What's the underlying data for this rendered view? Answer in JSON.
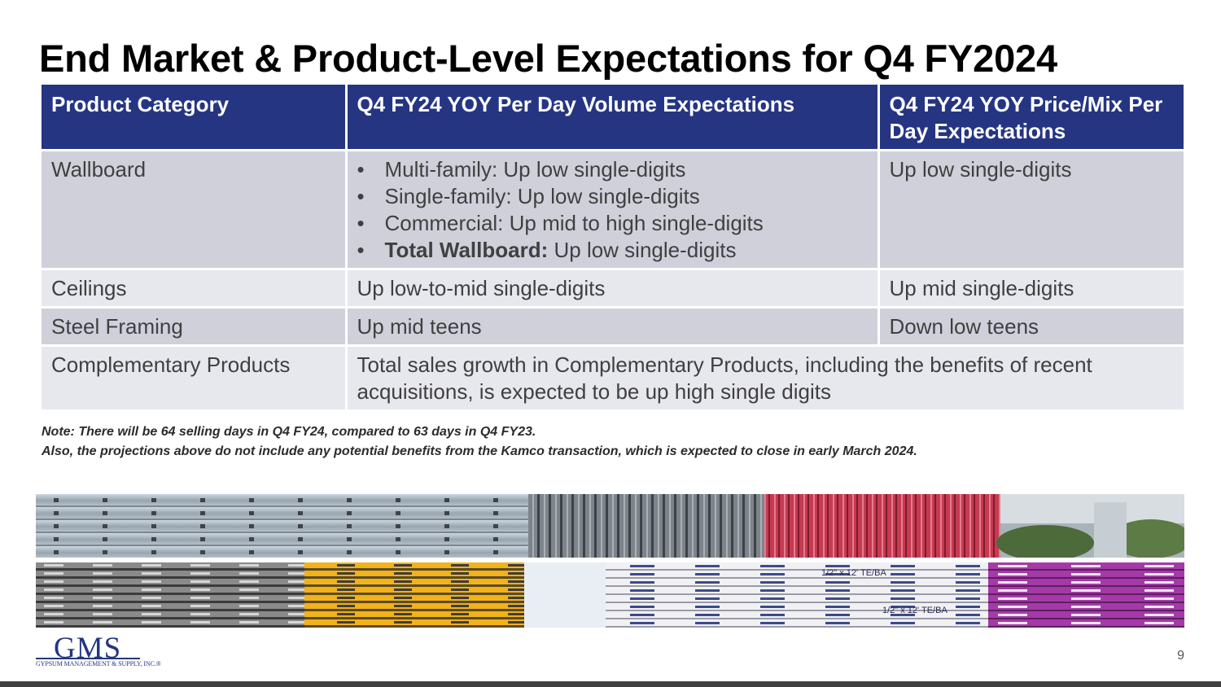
{
  "title": "End Market & Product-Level Expectations for Q4 FY2024",
  "table": {
    "headers": [
      "Product Category",
      "Q4 FY24 YOY Per Day Volume Expectations",
      "Q4 FY24 YOY Price/Mix Per Day Expectations"
    ],
    "wallboard": {
      "category": "Wallboard",
      "volume_bullets": [
        {
          "bold": "",
          "text": "Multi-family: Up low single-digits"
        },
        {
          "bold": "",
          "text": "Single-family: Up low single-digits"
        },
        {
          "bold": "",
          "text": "Commercial: Up mid to high single-digits"
        },
        {
          "bold": "Total Wallboard:",
          "text": " Up low single-digits"
        }
      ],
      "price": "Up low single-digits"
    },
    "ceilings": {
      "category": "Ceilings",
      "volume": "Up low-to-mid single-digits",
      "price": "Up mid single-digits"
    },
    "steel_framing": {
      "category": "Steel Framing",
      "volume": "Up mid teens",
      "price": "Down low teens"
    },
    "complementary": {
      "category": "Complementary Products",
      "combined": "Total sales growth in Complementary Products, including the benefits of recent acquisitions, is expected to be up high single digits"
    }
  },
  "note": {
    "line1": "Note:  There will be 64 selling days in Q4 FY24, compared to 63 days in Q4 FY23.",
    "line2": "Also, the projections above do not include any potential benefits from the Kamco transaction, which is expected to close in early March 2024."
  },
  "logo": {
    "mark": "GMS",
    "subtitle": "GYPSUM MANAGEMENT & SUPPLY, INC.",
    "registered": "®"
  },
  "photo_text": {
    "board_label": "1/2\" x 12' TE/BA"
  },
  "page_number": "9",
  "colors": {
    "header_bg": "#253582",
    "row_dark": "#cfd0da",
    "row_light": "#e7e7ee",
    "title": "#000000",
    "logo": "#24367f"
  }
}
